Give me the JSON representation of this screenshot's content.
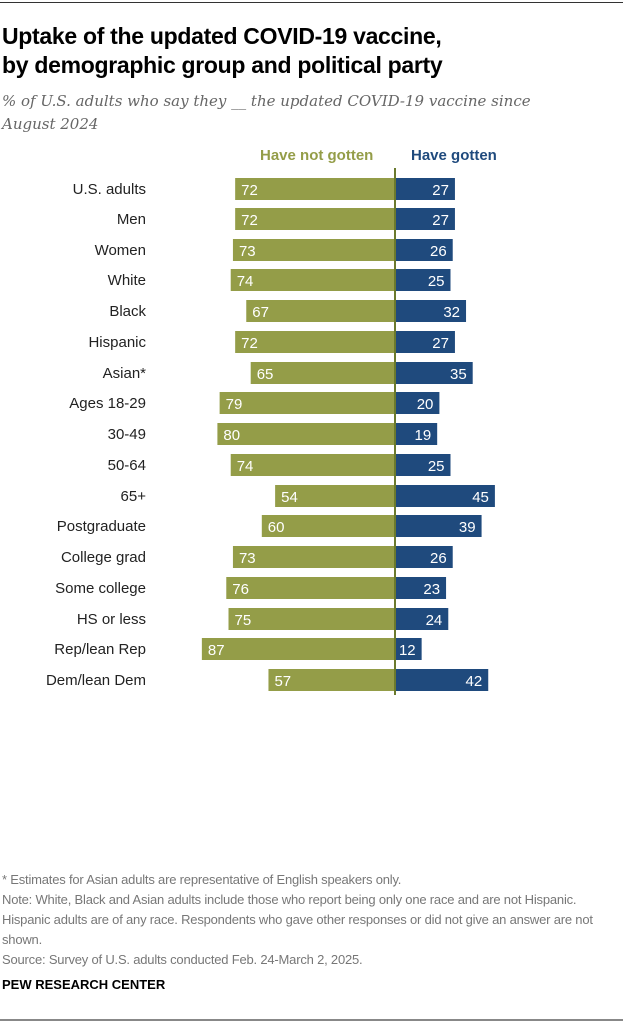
{
  "header": {
    "title_line1": "Uptake of the updated COVID-19 vaccine,",
    "title_line2": "by demographic group and political party",
    "subtitle": "% of U.S. adults who say they __ the updated COVID-19 vaccine since August 2024"
  },
  "colors": {
    "have_not_gotten": "#949d48",
    "have_gotten": "#1f4a7d",
    "axis": "#6b7a2e"
  },
  "chart_data": {
    "type": "bar",
    "orientation": "diverging-horizontal",
    "title": "Uptake of the updated COVID-19 vaccine, by demographic group and political party",
    "subtitle": "% of U.S. adults who say they __ the updated COVID-19 vaccine since August 2024",
    "legend": [
      "Have not gotten",
      "Have gotten"
    ],
    "legend_placement": "top",
    "categories": [
      "U.S. adults",
      "Men",
      "Women",
      "White",
      "Black",
      "Hispanic",
      "Asian*",
      "Ages 18-29",
      "30-49",
      "50-64",
      "65+",
      "Postgraduate",
      "College grad",
      "Some college",
      "HS or less",
      "Rep/lean Rep",
      "Dem/lean Dem"
    ],
    "groups": [
      [
        0
      ],
      [
        1,
        2
      ],
      [
        3,
        4,
        5,
        6
      ],
      [
        7,
        8,
        9,
        10
      ],
      [
        11,
        12,
        13,
        14
      ],
      [
        15,
        16
      ]
    ],
    "series": [
      {
        "name": "Have not gotten",
        "values": [
          72,
          72,
          73,
          74,
          67,
          72,
          65,
          79,
          80,
          74,
          54,
          60,
          73,
          76,
          75,
          87,
          57
        ]
      },
      {
        "name": "Have gotten",
        "values": [
          27,
          27,
          26,
          25,
          32,
          27,
          35,
          20,
          19,
          25,
          45,
          39,
          26,
          23,
          24,
          12,
          42
        ]
      }
    ],
    "xlabel": "",
    "ylabel": "",
    "xlim": [
      -100,
      100
    ],
    "grid": false
  },
  "footer": {
    "note1": "* Estimates for Asian adults are representative of English speakers only.",
    "note2": "Note: White, Black and Asian adults include those who report being only one race and are not Hispanic. Hispanic adults are of any race. Respondents who gave other responses or did not give an answer are not shown.",
    "source": "Source: Survey of U.S. adults conducted Feb. 24-March 2, 2025.",
    "brand": "PEW RESEARCH CENTER"
  }
}
